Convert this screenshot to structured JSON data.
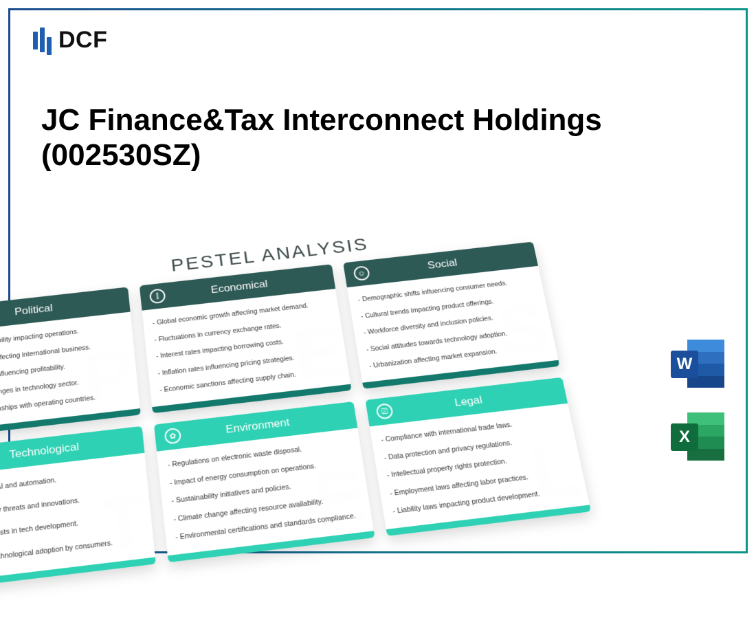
{
  "brand": "DCF",
  "title": "JC Finance&Tax Interconnect Holdings (002530SZ)",
  "pestel_label": "PESTEL ANALYSIS",
  "file_icons": {
    "word": "W",
    "excel": "X"
  },
  "colors": {
    "row1_header": "#2e5a56",
    "row1_footer": "#14796d",
    "row2_header": "#2ed1b3",
    "row2_footer": "#2ed1b3"
  },
  "cards": [
    {
      "key": "political",
      "title": "Political",
      "letter": "P",
      "icon": "🏛",
      "bullets": [
        "- Government stability impacting operations.",
        "- Trade policies affecting international business.",
        "- Taxation rates influencing profitability.",
        "- Regulatory changes in technology sector.",
        "- Political relationships with operating countries."
      ]
    },
    {
      "key": "economical",
      "title": "Economical",
      "letter": "E",
      "icon": "⫿",
      "bullets": [
        "- Global economic growth affecting market demand.",
        "- Fluctuations in currency exchange rates.",
        "- Interest rates impacting borrowing costs.",
        "- Inflation rates influencing pricing strategies.",
        "- Economic sanctions affecting supply chain."
      ]
    },
    {
      "key": "social",
      "title": "Social",
      "letter": "S",
      "icon": "☺",
      "bullets": [
        "- Demographic shifts influencing consumer needs.",
        "- Cultural trends impacting product offerings.",
        "- Workforce diversity and inclusion policies.",
        "- Social attitudes towards technology adoption.",
        "- Urbanization affecting market expansion."
      ]
    },
    {
      "key": "technological",
      "title": "Technological",
      "letter": "T",
      "icon": "⚙",
      "bullets": [
        "- Advances in AI and automation.",
        "- Cybersecurity threats and innovations.",
        "- High R&D costs in tech development.",
        "- Speed of technological adoption by consumers."
      ]
    },
    {
      "key": "environment",
      "title": "Environment",
      "letter": "E",
      "icon": "✿",
      "bullets": [
        "- Regulations on electronic waste disposal.",
        "- Impact of energy consumption on operations.",
        "- Sustainability initiatives and policies.",
        "- Climate change affecting resource availability.",
        "- Environmental certifications and standards compliance."
      ]
    },
    {
      "key": "legal",
      "title": "Legal",
      "letter": "L",
      "icon": "⎚",
      "bullets": [
        "- Compliance with international trade laws.",
        "- Data protection and privacy regulations.",
        "- Intellectual property rights protection.",
        "- Employment laws affecting labor practices.",
        "- Liability laws impacting product development."
      ]
    }
  ]
}
